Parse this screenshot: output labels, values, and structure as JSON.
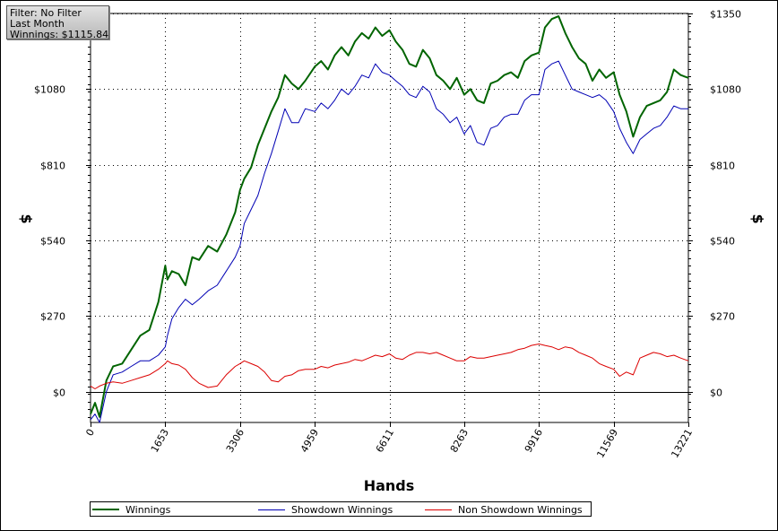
{
  "info": {
    "filter": "Filter: No Filter",
    "period": "Last Month",
    "winnings": "Winnings: $1115.84"
  },
  "chart_data": {
    "type": "line",
    "xlabel": "Hands",
    "ylabel_left": "$",
    "ylabel_right": "$",
    "xlim": [
      0,
      13221
    ],
    "ylim": [
      -110,
      1350
    ],
    "x_ticks": [
      "0",
      "1653",
      "3306",
      "4959",
      "6611",
      "8263",
      "9916",
      "11569",
      "13221"
    ],
    "y_ticks": [
      "$0",
      "$270",
      "$540",
      "$810",
      "$1080",
      "$1350"
    ],
    "y_tick_values": [
      0,
      270,
      540,
      810,
      1080,
      1350
    ],
    "grid": true,
    "legend_position": "bottom",
    "series": [
      {
        "name": "Winnings",
        "color": "#006400",
        "x": [
          0,
          100,
          200,
          350,
          500,
          700,
          900,
          1100,
          1300,
          1500,
          1653,
          1700,
          1800,
          1950,
          2100,
          2250,
          2400,
          2600,
          2800,
          3000,
          3200,
          3306,
          3400,
          3550,
          3700,
          3850,
          4000,
          4150,
          4300,
          4450,
          4600,
          4750,
          4959,
          5100,
          5250,
          5400,
          5550,
          5700,
          5850,
          6000,
          6150,
          6300,
          6450,
          6611,
          6750,
          6900,
          7050,
          7200,
          7350,
          7500,
          7650,
          7800,
          7950,
          8100,
          8263,
          8400,
          8550,
          8700,
          8850,
          9000,
          9150,
          9300,
          9450,
          9600,
          9750,
          9916,
          10050,
          10200,
          10350,
          10500,
          10650,
          10800,
          10950,
          11100,
          11250,
          11400,
          11569,
          11700,
          11850,
          12000,
          12150,
          12300,
          12450,
          12600,
          12750,
          12900,
          13050,
          13221
        ],
        "y": [
          -80,
          -40,
          -90,
          40,
          90,
          100,
          150,
          200,
          220,
          320,
          450,
          400,
          430,
          420,
          380,
          480,
          470,
          520,
          500,
          560,
          640,
          720,
          760,
          800,
          880,
          940,
          1000,
          1050,
          1130,
          1100,
          1080,
          1110,
          1160,
          1180,
          1150,
          1200,
          1230,
          1200,
          1250,
          1280,
          1260,
          1300,
          1270,
          1290,
          1250,
          1220,
          1170,
          1160,
          1220,
          1190,
          1130,
          1110,
          1080,
          1120,
          1060,
          1080,
          1040,
          1030,
          1100,
          1110,
          1130,
          1140,
          1120,
          1180,
          1200,
          1210,
          1300,
          1330,
          1340,
          1280,
          1230,
          1190,
          1170,
          1110,
          1150,
          1120,
          1140,
          1060,
          1000,
          910,
          980,
          1020,
          1030,
          1040,
          1070,
          1150,
          1130,
          1120
        ]
      },
      {
        "name": "Showdown Winnings",
        "color": "#0000b4",
        "x": [
          0,
          100,
          200,
          350,
          500,
          700,
          900,
          1100,
          1300,
          1500,
          1653,
          1700,
          1800,
          1950,
          2100,
          2250,
          2400,
          2600,
          2800,
          3000,
          3200,
          3306,
          3400,
          3550,
          3700,
          3850,
          4000,
          4150,
          4300,
          4450,
          4600,
          4750,
          4959,
          5100,
          5250,
          5400,
          5550,
          5700,
          5850,
          6000,
          6150,
          6300,
          6450,
          6611,
          6750,
          6900,
          7050,
          7200,
          7350,
          7500,
          7650,
          7800,
          7950,
          8100,
          8263,
          8400,
          8550,
          8700,
          8850,
          9000,
          9150,
          9300,
          9450,
          9600,
          9750,
          9916,
          10050,
          10200,
          10350,
          10500,
          10650,
          10800,
          10950,
          11100,
          11250,
          11400,
          11569,
          11700,
          11850,
          12000,
          12150,
          12300,
          12450,
          12600,
          12750,
          12900,
          13050,
          13221
        ],
        "y": [
          -100,
          -80,
          -110,
          0,
          60,
          70,
          90,
          110,
          110,
          130,
          160,
          200,
          260,
          300,
          330,
          310,
          330,
          360,
          380,
          430,
          480,
          520,
          600,
          650,
          700,
          780,
          850,
          930,
          1010,
          960,
          960,
          1010,
          1000,
          1030,
          1010,
          1040,
          1080,
          1060,
          1090,
          1130,
          1120,
          1170,
          1140,
          1130,
          1110,
          1090,
          1060,
          1050,
          1090,
          1070,
          1010,
          990,
          960,
          980,
          920,
          950,
          890,
          880,
          940,
          950,
          980,
          990,
          990,
          1040,
          1060,
          1060,
          1150,
          1170,
          1180,
          1130,
          1080,
          1070,
          1060,
          1050,
          1060,
          1040,
          1000,
          940,
          890,
          850,
          900,
          920,
          940,
          950,
          980,
          1020,
          1010,
          1010
        ]
      },
      {
        "name": "Non Showdown Winnings",
        "color": "#dc0000",
        "x": [
          0,
          100,
          200,
          350,
          500,
          700,
          900,
          1100,
          1300,
          1500,
          1653,
          1700,
          1800,
          1950,
          2100,
          2250,
          2400,
          2600,
          2800,
          3000,
          3200,
          3306,
          3400,
          3550,
          3700,
          3850,
          4000,
          4150,
          4300,
          4450,
          4600,
          4750,
          4959,
          5100,
          5250,
          5400,
          5550,
          5700,
          5850,
          6000,
          6150,
          6300,
          6450,
          6611,
          6750,
          6900,
          7050,
          7200,
          7350,
          7500,
          7650,
          7800,
          7950,
          8100,
          8263,
          8400,
          8550,
          8700,
          8850,
          9000,
          9150,
          9300,
          9450,
          9600,
          9750,
          9916,
          10050,
          10200,
          10350,
          10500,
          10650,
          10800,
          10950,
          11100,
          11250,
          11400,
          11569,
          11700,
          11850,
          12000,
          12150,
          12300,
          12450,
          12600,
          12750,
          12900,
          13050,
          13221
        ],
        "y": [
          20,
          10,
          20,
          30,
          35,
          30,
          40,
          50,
          60,
          80,
          100,
          110,
          100,
          95,
          80,
          50,
          30,
          15,
          20,
          60,
          90,
          100,
          110,
          100,
          90,
          70,
          40,
          35,
          55,
          60,
          75,
          80,
          80,
          90,
          85,
          95,
          100,
          105,
          115,
          110,
          120,
          130,
          125,
          135,
          120,
          115,
          130,
          140,
          140,
          135,
          140,
          130,
          120,
          110,
          110,
          125,
          120,
          120,
          125,
          130,
          135,
          140,
          150,
          155,
          165,
          170,
          165,
          160,
          150,
          160,
          155,
          140,
          130,
          120,
          100,
          90,
          80,
          55,
          70,
          60,
          120,
          130,
          140,
          135,
          125,
          130,
          120,
          110
        ]
      }
    ]
  }
}
